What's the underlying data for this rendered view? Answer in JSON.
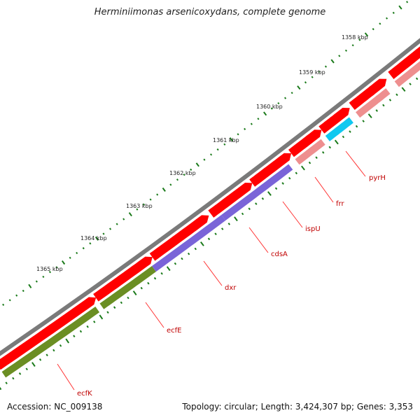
{
  "title": "Herminiimonas arsenicoxydans, complete genome",
  "accession": "Accession: NC_009138",
  "summary": "Topology: circular; Length: 3,424,307 bp; Genes: 3,353",
  "colors": {
    "backbone": "#7a7a7a",
    "cds_forward": "#ff0000",
    "cds_pink": "#ee8f8f",
    "cds_cyan": "#10c8f0",
    "cds_purple": "#7a64d8",
    "cds_green": "#6b8e23",
    "tick": "#1a7a1a",
    "label": "#c00000"
  },
  "kbp_labels": [
    {
      "text": "1358 kbp"
    },
    {
      "text": "1359 kbp"
    },
    {
      "text": "1360 kbp"
    },
    {
      "text": "1361 kbp"
    },
    {
      "text": "1362 kbp"
    },
    {
      "text": "1363 kbp"
    },
    {
      "text": "1364 kbp"
    },
    {
      "text": "1365 kbp"
    }
  ],
  "genes": [
    {
      "name": "pyrH"
    },
    {
      "name": "frr"
    },
    {
      "name": "ispU"
    },
    {
      "name": "cdsA"
    },
    {
      "name": "dxr"
    },
    {
      "name": "ecfE"
    },
    {
      "name": "ecfK"
    }
  ]
}
